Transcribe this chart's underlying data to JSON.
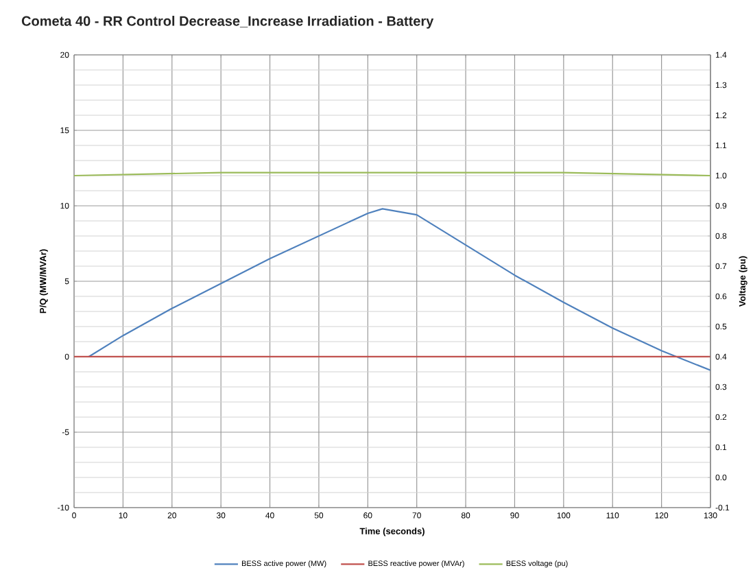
{
  "chart_data": {
    "type": "line",
    "title": "Cometa 40 - RR Control Decrease_Increase Irradiation - Battery",
    "xlabel": "Time (seconds)",
    "ylabel": "P/Q (MW/MVAr)",
    "y2label": "Voltage (pu)",
    "xlim": [
      0,
      130
    ],
    "xticks": [
      0,
      10,
      20,
      30,
      40,
      50,
      60,
      70,
      80,
      90,
      100,
      110,
      120,
      130
    ],
    "ylim": [
      -10,
      20
    ],
    "yticks": [
      -10,
      -5,
      0,
      5,
      10,
      15,
      20
    ],
    "y2lim": [
      -0.1,
      1.4
    ],
    "y2ticks": [
      -0.1,
      {
        "value": 0,
        "label": "0.0"
      },
      0.1,
      0.2,
      0.3,
      0.4,
      0.5,
      0.6,
      0.7,
      0.8,
      0.9,
      {
        "value": 1,
        "label": "1.0"
      },
      1.1,
      1.2,
      1.3,
      1.4
    ],
    "grid": true,
    "legend": "bottom",
    "marker": "none",
    "line_style": "solid",
    "series": [
      {
        "name": "BESS active power (MW)",
        "color": "#4f81bd",
        "x": [
          3,
          10,
          20,
          40,
          60,
          63,
          70,
          80,
          90,
          100,
          110,
          120,
          130
        ],
        "values": [
          0,
          1.4,
          3.2,
          6.5,
          9.5,
          9.8,
          9.4,
          7.4,
          5.4,
          3.6,
          1.9,
          0.4,
          -0.9
        ]
      },
      {
        "name": "BESS reactive power (MVAr)",
        "color": "#c0504d",
        "x": [
          0,
          130
        ],
        "values": [
          0,
          0
        ]
      },
      {
        "name": "BESS voltage (pu)",
        "color": "#9bbb59",
        "axis": "y2",
        "x": [
          0,
          30,
          60,
          70,
          100,
          130
        ],
        "values": [
          1.0,
          1.01,
          1.01,
          1.01,
          1.01,
          1.0
        ]
      }
    ]
  }
}
